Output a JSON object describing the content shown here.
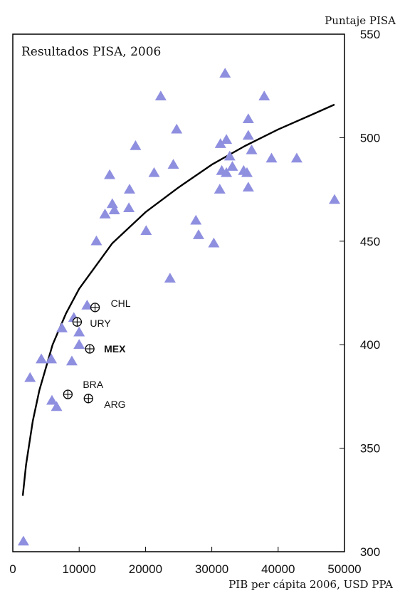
{
  "chart_data": {
    "type": "scatter",
    "title": "Resultados PISA, 2006",
    "xlabel": "PIB per cápita 2006, USD PPA",
    "ylabel": "Puntaje PISA",
    "xlim": [
      0,
      50000
    ],
    "ylim": [
      300,
      550
    ],
    "xticks": [
      "0",
      "10000",
      "20000",
      "30000",
      "40000",
      "50000"
    ],
    "yticks": [
      "300",
      "350",
      "400",
      "450",
      "500",
      "550"
    ],
    "grid": false,
    "y_axis_side": "right",
    "marker_color": "#8f8fe0",
    "curve_color": "#000000",
    "series": [
      {
        "marker": "triangle",
        "points": [
          [
            32000,
            531
          ],
          [
            22300,
            520
          ],
          [
            37900,
            520
          ],
          [
            35500,
            509
          ],
          [
            24700,
            504
          ],
          [
            35500,
            501
          ],
          [
            18500,
            496
          ],
          [
            31300,
            497
          ],
          [
            32200,
            499
          ],
          [
            36000,
            494
          ],
          [
            39000,
            490
          ],
          [
            42800,
            490
          ],
          [
            24200,
            487
          ],
          [
            32700,
            491
          ],
          [
            33100,
            486
          ],
          [
            31500,
            484
          ],
          [
            34800,
            484
          ],
          [
            14600,
            482
          ],
          [
            21300,
            483
          ],
          [
            32200,
            483
          ],
          [
            35300,
            483
          ],
          [
            17600,
            475
          ],
          [
            31200,
            475
          ],
          [
            35500,
            476
          ],
          [
            48500,
            470
          ],
          [
            15000,
            468
          ],
          [
            13900,
            463
          ],
          [
            15300,
            465
          ],
          [
            17500,
            466
          ],
          [
            27600,
            460
          ],
          [
            20100,
            455
          ],
          [
            28000,
            453
          ],
          [
            12600,
            450
          ],
          [
            30300,
            449
          ],
          [
            23700,
            432
          ],
          [
            11200,
            419
          ],
          [
            9200,
            413
          ],
          [
            7400,
            408
          ],
          [
            10000,
            406
          ],
          [
            10000,
            400
          ],
          [
            4300,
            393
          ],
          [
            5800,
            393
          ],
          [
            8900,
            392
          ],
          [
            2600,
            384
          ],
          [
            5900,
            373
          ],
          [
            6600,
            370
          ],
          [
            1600,
            305
          ]
        ]
      },
      {
        "marker": "circle-cross",
        "points": [
          {
            "x": 12400,
            "y": 418,
            "label": "CHL",
            "bold": false
          },
          {
            "x": 9700,
            "y": 411,
            "label": "URY",
            "bold": false
          },
          {
            "x": 11600,
            "y": 398,
            "label": "MEX",
            "bold": true
          },
          {
            "x": 8300,
            "y": 376,
            "label": "BRA",
            "bold": false
          },
          {
            "x": 11400,
            "y": 374,
            "label": "ARG",
            "bold": false
          }
        ]
      }
    ],
    "fit_curve": {
      "type": "logarithmic",
      "x_range": [
        1500,
        48500
      ],
      "points": [
        [
          1500,
          327
        ],
        [
          2000,
          342
        ],
        [
          3000,
          363
        ],
        [
          4000,
          378
        ],
        [
          6000,
          400
        ],
        [
          8000,
          415
        ],
        [
          10000,
          427
        ],
        [
          15000,
          449
        ],
        [
          20000,
          464
        ],
        [
          25000,
          476
        ],
        [
          30000,
          487
        ],
        [
          35000,
          496
        ],
        [
          40000,
          504
        ],
        [
          45000,
          511
        ],
        [
          48500,
          516
        ]
      ]
    }
  }
}
